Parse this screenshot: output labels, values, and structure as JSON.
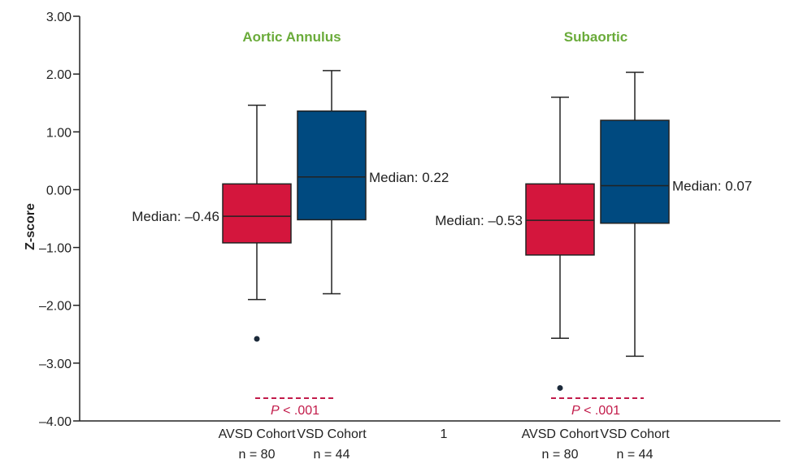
{
  "chart_data": {
    "type": "boxplot",
    "ylabel": "Z-score",
    "ylim": [
      -4,
      3
    ],
    "yticks": [
      "3.00",
      "2.00",
      "1.00",
      "0.00",
      "–1.00",
      "–2.00",
      "–3.00",
      "–4.00"
    ],
    "ytick_values": [
      3,
      2,
      1,
      0,
      -1,
      -2,
      -3,
      -4
    ],
    "middle_x_label": "1",
    "colors": {
      "avsd": "#d4163d",
      "vsd": "#004a80",
      "title": "#6aab3a",
      "pvalue": "#c21b4a"
    },
    "groups": [
      {
        "title": "Aortic Annulus",
        "p_prefix": "P",
        "p_suffix": " < .001",
        "boxes": [
          {
            "series": "AVSD",
            "category": "AVSD Cohort",
            "n_label": "n = 80",
            "whisker_low": -1.9,
            "q1": -0.92,
            "median": -0.46,
            "q3": 0.1,
            "whisker_high": 1.46,
            "outliers": [
              -2.58
            ],
            "median_label": "Median: –0.46"
          },
          {
            "series": "VSD",
            "category": "VSD Cohort",
            "n_label": "n = 44",
            "whisker_low": -1.8,
            "q1": -0.52,
            "median": 0.22,
            "q3": 1.36,
            "whisker_high": 2.06,
            "outliers": [],
            "median_label": "Median: 0.22"
          }
        ]
      },
      {
        "title": "Subaortic",
        "p_prefix": "P",
        "p_suffix": " < .001",
        "boxes": [
          {
            "series": "AVSD",
            "category": "AVSD Cohort",
            "n_label": "n = 80",
            "whisker_low": -2.57,
            "q1": -1.13,
            "median": -0.53,
            "q3": 0.1,
            "whisker_high": 1.6,
            "outliers": [
              -3.43
            ],
            "median_label": "Median: –0.53"
          },
          {
            "series": "VSD",
            "category": "VSD Cohort",
            "n_label": "n = 44",
            "whisker_low": -2.88,
            "q1": -0.58,
            "median": 0.07,
            "q3": 1.2,
            "whisker_high": 2.03,
            "outliers": [],
            "median_label": "Median: 0.07"
          }
        ]
      }
    ]
  }
}
